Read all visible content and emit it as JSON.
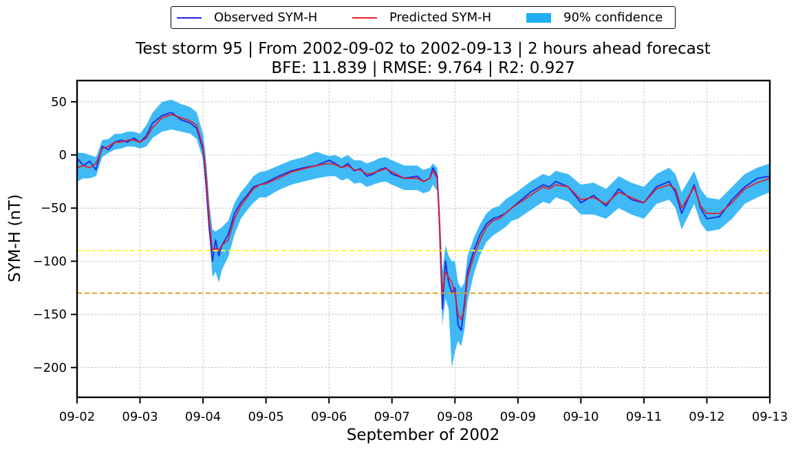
{
  "legend": {
    "observed_label": "Observed SYM-H",
    "predicted_label": "Predicted SYM-H",
    "confidence_label": "90% confidence"
  },
  "colors": {
    "observed": "#1f1fe0",
    "predicted": "#e0202a",
    "confidence": "#1eaef5",
    "threshold_moderate": "#ffff33",
    "threshold_intense": "#e0a020",
    "grid": "#b0b0b0"
  },
  "chart_data": {
    "type": "line",
    "title": "Test storm 95 | From 2002-09-02 to 2002-09-13 | 2 hours ahead forecast",
    "subtitle": "BFE: 11.839 | RMSE: 9.764 | R2: 0.927",
    "xlabel": "September of 2002",
    "ylabel": "SYM-H (nT)",
    "x_range_days": [
      0,
      11
    ],
    "ylim": [
      -228,
      70
    ],
    "grid": true,
    "legend_position": "top-center",
    "x_ticks": [
      {
        "day": 0,
        "label": "09-02"
      },
      {
        "day": 1,
        "label": "09-03"
      },
      {
        "day": 2,
        "label": "09-04"
      },
      {
        "day": 3,
        "label": "09-05"
      },
      {
        "day": 4,
        "label": "09-06"
      },
      {
        "day": 5,
        "label": "09-07"
      },
      {
        "day": 6,
        "label": "09-08"
      },
      {
        "day": 7,
        "label": "09-09"
      },
      {
        "day": 8,
        "label": "09-10"
      },
      {
        "day": 9,
        "label": "09-11"
      },
      {
        "day": 10,
        "label": "09-12"
      },
      {
        "day": 11,
        "label": "09-13"
      }
    ],
    "y_ticks": [
      {
        "value": 50,
        "label": "50"
      },
      {
        "value": 0,
        "label": "0"
      },
      {
        "value": -50,
        "label": "−50"
      },
      {
        "value": -100,
        "label": "−100"
      },
      {
        "value": -150,
        "label": "−150"
      },
      {
        "value": -200,
        "label": "−200"
      }
    ],
    "thresholds": [
      {
        "name": "moderate",
        "value": -90
      },
      {
        "name": "intense",
        "value": -130
      }
    ],
    "x_days": [
      0,
      0.1,
      0.2,
      0.3,
      0.4,
      0.5,
      0.6,
      0.7,
      0.8,
      0.9,
      1.0,
      1.1,
      1.2,
      1.35,
      1.5,
      1.65,
      1.8,
      1.9,
      2.0,
      2.05,
      2.1,
      2.15,
      2.2,
      2.25,
      2.3,
      2.4,
      2.5,
      2.6,
      2.7,
      2.8,
      2.9,
      3.0,
      3.2,
      3.4,
      3.6,
      3.8,
      4.0,
      4.1,
      4.2,
      4.3,
      4.4,
      4.5,
      4.6,
      4.7,
      4.8,
      4.9,
      5.0,
      5.2,
      5.4,
      5.5,
      5.6,
      5.65,
      5.72,
      5.75,
      5.8,
      5.85,
      5.9,
      5.95,
      6.0,
      6.05,
      6.1,
      6.15,
      6.2,
      6.3,
      6.4,
      6.5,
      6.6,
      6.7,
      6.8,
      6.9,
      7.0,
      7.2,
      7.4,
      7.5,
      7.6,
      7.8,
      8.0,
      8.2,
      8.4,
      8.6,
      8.8,
      9.0,
      9.2,
      9.4,
      9.5,
      9.6,
      9.8,
      9.9,
      10.0,
      10.2,
      10.4,
      10.6,
      10.8,
      11.0
    ],
    "series": [
      {
        "name": "Observed SYM-H",
        "values": [
          -3,
          -10,
          -6,
          -14,
          8,
          5,
          12,
          14,
          12,
          16,
          12,
          18,
          30,
          37,
          40,
          33,
          30,
          25,
          5,
          -30,
          -70,
          -100,
          -80,
          -95,
          -85,
          -75,
          -55,
          -45,
          -38,
          -30,
          -28,
          -26,
          -20,
          -15,
          -12,
          -10,
          -5,
          -8,
          -12,
          -8,
          -15,
          -13,
          -20,
          -18,
          -14,
          -12,
          -18,
          -22,
          -20,
          -25,
          -22,
          -12,
          -20,
          -60,
          -145,
          -100,
          -120,
          -130,
          -125,
          -160,
          -165,
          -140,
          -110,
          -90,
          -75,
          -65,
          -60,
          -58,
          -55,
          -50,
          -45,
          -35,
          -28,
          -30,
          -25,
          -30,
          -45,
          -38,
          -48,
          -32,
          -42,
          -45,
          -30,
          -25,
          -35,
          -55,
          -28,
          -50,
          -60,
          -58,
          -42,
          -30,
          -22,
          -20
        ]
      },
      {
        "name": "Predicted SYM-H",
        "values": [
          -12,
          -10,
          -12,
          -8,
          6,
          8,
          12,
          12,
          14,
          14,
          12,
          16,
          26,
          35,
          38,
          35,
          32,
          28,
          8,
          -20,
          -60,
          -90,
          -88,
          -90,
          -85,
          -80,
          -60,
          -48,
          -40,
          -32,
          -28,
          -27,
          -22,
          -16,
          -13,
          -10,
          -8,
          -9,
          -12,
          -10,
          -14,
          -14,
          -18,
          -17,
          -15,
          -13,
          -16,
          -22,
          -22,
          -25,
          -22,
          -15,
          -22,
          -55,
          -130,
          -110,
          -115,
          -120,
          -130,
          -150,
          -155,
          -145,
          -115,
          -95,
          -80,
          -68,
          -62,
          -60,
          -55,
          -50,
          -46,
          -38,
          -30,
          -32,
          -28,
          -30,
          -42,
          -40,
          -46,
          -35,
          -40,
          -45,
          -32,
          -28,
          -32,
          -50,
          -30,
          -48,
          -55,
          -55,
          -45,
          -32,
          -26,
          -22
        ]
      },
      {
        "name": "90% confidence upper",
        "values": [
          2,
          2,
          0,
          -2,
          14,
          15,
          20,
          20,
          22,
          22,
          20,
          28,
          40,
          50,
          52,
          48,
          45,
          40,
          20,
          -5,
          -45,
          -70,
          -72,
          -70,
          -68,
          -62,
          -45,
          -35,
          -28,
          -20,
          -16,
          -15,
          -10,
          -5,
          -2,
          3,
          -1,
          0,
          -3,
          0,
          -5,
          -5,
          -8,
          -6,
          -3,
          -2,
          -5,
          -10,
          -10,
          -14,
          -12,
          -8,
          -12,
          -40,
          -110,
          -85,
          -95,
          -100,
          -100,
          -120,
          -125,
          -120,
          -95,
          -78,
          -65,
          -55,
          -50,
          -48,
          -42,
          -38,
          -34,
          -25,
          -18,
          -20,
          -15,
          -18,
          -28,
          -26,
          -32,
          -20,
          -26,
          -30,
          -18,
          -12,
          -18,
          -35,
          -15,
          -32,
          -40,
          -42,
          -30,
          -18,
          -12,
          -8
        ]
      },
      {
        "name": "90% confidence lower",
        "values": [
          -25,
          -22,
          -22,
          -20,
          -2,
          2,
          5,
          6,
          8,
          8,
          6,
          8,
          16,
          22,
          24,
          22,
          20,
          15,
          -4,
          -35,
          -75,
          -115,
          -110,
          -120,
          -108,
          -96,
          -75,
          -60,
          -52,
          -45,
          -40,
          -40,
          -33,
          -28,
          -25,
          -22,
          -20,
          -20,
          -24,
          -22,
          -27,
          -26,
          -30,
          -28,
          -26,
          -25,
          -28,
          -33,
          -33,
          -36,
          -34,
          -28,
          -34,
          -70,
          -160,
          -135,
          -145,
          -200,
          -185,
          -175,
          -180,
          -165,
          -138,
          -112,
          -94,
          -82,
          -76,
          -72,
          -68,
          -62,
          -60,
          -52,
          -44,
          -46,
          -40,
          -44,
          -56,
          -56,
          -60,
          -50,
          -56,
          -60,
          -46,
          -42,
          -50,
          -70,
          -46,
          -64,
          -72,
          -70,
          -60,
          -46,
          -40,
          -35
        ]
      }
    ]
  }
}
